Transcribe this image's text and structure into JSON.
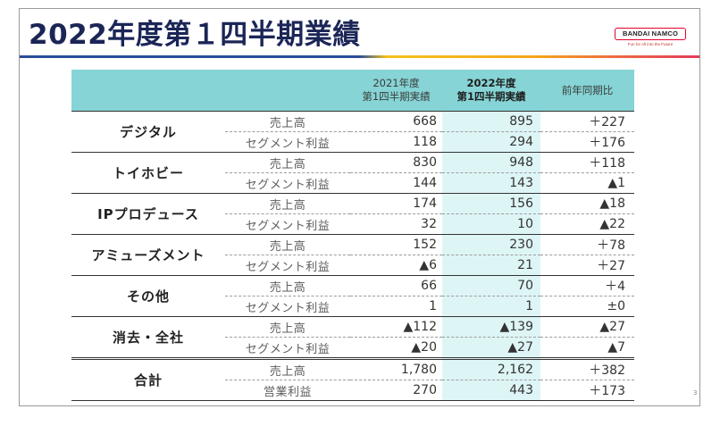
{
  "slide": {
    "title": "2022年度第１四半期業績",
    "page_number": "3",
    "logo": {
      "name": "BANDAI NAMCO",
      "tagline": "Fun for All into the Future"
    }
  },
  "table": {
    "headers": {
      "prev": [
        "2021年度",
        "第1四半期実績"
      ],
      "curr": [
        "2022年度",
        "第1四半期実績"
      ],
      "yoy": "前年同期比"
    },
    "segments": [
      {
        "name": "デジタル",
        "rows": [
          {
            "item": "売上高",
            "prev": "668",
            "curr": "895",
            "yoy": "＋227"
          },
          {
            "item": "セグメント利益",
            "prev": "118",
            "curr": "294",
            "yoy": "＋176"
          }
        ]
      },
      {
        "name": "トイホビー",
        "rows": [
          {
            "item": "売上高",
            "prev": "830",
            "curr": "948",
            "yoy": "＋118"
          },
          {
            "item": "セグメント利益",
            "prev": "144",
            "curr": "143",
            "yoy": "▲1"
          }
        ]
      },
      {
        "name": "IPプロデュース",
        "rows": [
          {
            "item": "売上高",
            "prev": "174",
            "curr": "156",
            "yoy": "▲18"
          },
          {
            "item": "セグメント利益",
            "prev": "32",
            "curr": "10",
            "yoy": "▲22"
          }
        ]
      },
      {
        "name": "アミューズメント",
        "rows": [
          {
            "item": "売上高",
            "prev": "152",
            "curr": "230",
            "yoy": "＋78"
          },
          {
            "item": "セグメント利益",
            "prev": "▲6",
            "curr": "21",
            "yoy": "＋27"
          }
        ]
      },
      {
        "name": "その他",
        "rows": [
          {
            "item": "売上高",
            "prev": "66",
            "curr": "70",
            "yoy": "＋4"
          },
          {
            "item": "セグメント利益",
            "prev": "1",
            "curr": "1",
            "yoy": "±0"
          }
        ]
      },
      {
        "name": "消去・全社",
        "rows": [
          {
            "item": "売上高",
            "prev": "▲112",
            "curr": "▲139",
            "yoy": "▲27"
          },
          {
            "item": "セグメント利益",
            "prev": "▲20",
            "curr": "▲27",
            "yoy": "▲7"
          }
        ]
      },
      {
        "name": "合計",
        "rows": [
          {
            "item": "売上高",
            "prev": "1,780",
            "curr": "2,162",
            "yoy": "＋382"
          },
          {
            "item": "営業利益",
            "prev": "270",
            "curr": "443",
            "yoy": "＋173"
          }
        ]
      }
    ]
  },
  "colors": {
    "title": "#1b2656",
    "header_bg": "#86d4d5",
    "highlight_bg": "#def5f6",
    "logo_red": "#e4002b",
    "rule_blue": "#2b4d9c",
    "rule_yellow": "#f5c21b",
    "rule_red": "#e23d5b"
  }
}
